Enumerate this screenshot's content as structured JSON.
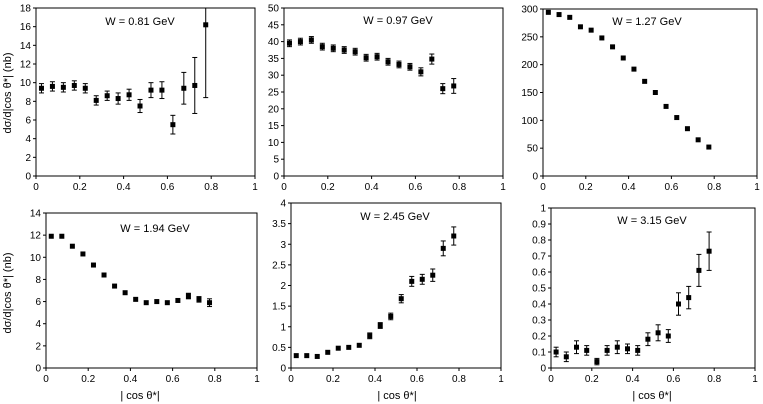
{
  "figure": {
    "ylabel_left": "dσ/d|cos θ*| (nb)",
    "xlabel_bottom": "| cos θ*|"
  },
  "chart_data": [
    {
      "type": "scatter",
      "title": "W = 0.81 GeV",
      "xlabel": "",
      "ylabel": "dσ/d|cos θ*| (nb)",
      "xlim": [
        0,
        1
      ],
      "ylim": [
        0,
        18
      ],
      "xticks": [
        0,
        0.2,
        0.4,
        0.6,
        0.8,
        1
      ],
      "xtick_labels": [
        "0",
        "0.2",
        "0.4",
        "0.6",
        "0.8",
        "1"
      ],
      "yticks": [
        0,
        2,
        4,
        6,
        8,
        10,
        12,
        14,
        16,
        18
      ],
      "ytick_labels": [
        "0",
        "2",
        "4",
        "6",
        "8",
        "10",
        "12",
        "14",
        "16",
        "18"
      ],
      "x": [
        0.025,
        0.075,
        0.125,
        0.175,
        0.225,
        0.275,
        0.325,
        0.375,
        0.425,
        0.475,
        0.525,
        0.575,
        0.625,
        0.675,
        0.725,
        0.775
      ],
      "y": [
        9.4,
        9.6,
        9.5,
        9.7,
        9.4,
        8.1,
        8.6,
        8.3,
        8.7,
        7.5,
        9.2,
        9.2,
        5.5,
        9.4,
        9.7,
        16.2
      ],
      "err": [
        0.5,
        0.5,
        0.5,
        0.5,
        0.5,
        0.5,
        0.5,
        0.6,
        0.6,
        0.7,
        0.8,
        0.9,
        1.0,
        1.7,
        3.0,
        7.8
      ]
    },
    {
      "type": "scatter",
      "title": "W = 0.97 GeV",
      "xlabel": "",
      "ylabel": "",
      "xlim": [
        0,
        1
      ],
      "ylim": [
        0,
        50
      ],
      "xticks": [
        0,
        0.2,
        0.4,
        0.6,
        0.8,
        1
      ],
      "xtick_labels": [
        "0",
        "0.2",
        "0.4",
        "0.6",
        "0.8",
        "1"
      ],
      "yticks": [
        0,
        5,
        10,
        15,
        20,
        25,
        30,
        35,
        40,
        45,
        50
      ],
      "ytick_labels": [
        "0",
        "5",
        "10",
        "15",
        "20",
        "25",
        "30",
        "35",
        "40",
        "45",
        "50"
      ],
      "x": [
        0.025,
        0.075,
        0.125,
        0.175,
        0.225,
        0.275,
        0.325,
        0.375,
        0.425,
        0.475,
        0.525,
        0.575,
        0.625,
        0.675,
        0.725,
        0.775
      ],
      "y": [
        39.5,
        40.0,
        40.5,
        38.5,
        38.0,
        37.5,
        37.0,
        35.2,
        35.5,
        34.0,
        33.2,
        32.5,
        31.0,
        34.8,
        26.0,
        26.8
      ],
      "err": [
        1.0,
        1.0,
        1.0,
        1.0,
        1.0,
        1.0,
        1.0,
        1.0,
        1.0,
        1.0,
        1.0,
        1.0,
        1.2,
        1.5,
        1.5,
        2.2
      ]
    },
    {
      "type": "scatter",
      "title": "W = 1.27 GeV",
      "xlabel": "",
      "ylabel": "",
      "xlim": [
        0,
        1
      ],
      "ylim": [
        0,
        300
      ],
      "xticks": [
        0,
        0.2,
        0.4,
        0.6,
        0.8,
        1
      ],
      "xtick_labels": [
        "0",
        "0.2",
        "0.4",
        "0.6",
        "0.8",
        "1"
      ],
      "yticks": [
        0,
        50,
        100,
        150,
        200,
        250,
        300
      ],
      "ytick_labels": [
        "0",
        "50",
        "100",
        "150",
        "200",
        "250",
        "300"
      ],
      "x": [
        0.025,
        0.075,
        0.125,
        0.175,
        0.225,
        0.275,
        0.325,
        0.375,
        0.425,
        0.475,
        0.525,
        0.575,
        0.625,
        0.675,
        0.725,
        0.775
      ],
      "y": [
        294,
        290,
        285,
        268,
        262,
        248,
        232,
        212,
        192,
        170,
        150,
        125,
        105,
        85,
        65,
        52
      ],
      "err": [
        3,
        3,
        3,
        3,
        3,
        3,
        3,
        3,
        3,
        3,
        3,
        3,
        3,
        3,
        3,
        3
      ]
    },
    {
      "type": "scatter",
      "title": "W = 1.94 GeV",
      "xlabel": "| cos θ*|",
      "ylabel": "dσ/d|cos θ*| (nb)",
      "xlim": [
        0,
        1
      ],
      "ylim": [
        0,
        14
      ],
      "xticks": [
        0,
        0.2,
        0.4,
        0.6,
        0.8,
        1
      ],
      "xtick_labels": [
        "0",
        "0.2",
        "0.4",
        "0.6",
        "0.8",
        "1"
      ],
      "yticks": [
        0,
        2,
        4,
        6,
        8,
        10,
        12,
        14
      ],
      "ytick_labels": [
        "0",
        "2",
        "4",
        "6",
        "8",
        "10",
        "12",
        "14"
      ],
      "x": [
        0.025,
        0.075,
        0.125,
        0.175,
        0.225,
        0.275,
        0.325,
        0.375,
        0.425,
        0.475,
        0.525,
        0.575,
        0.625,
        0.675,
        0.725,
        0.775
      ],
      "y": [
        11.9,
        11.9,
        11.0,
        10.3,
        9.3,
        8.4,
        7.4,
        6.8,
        6.2,
        5.9,
        6.0,
        5.9,
        6.1,
        6.5,
        6.2,
        5.9
      ],
      "err": [
        0.15,
        0.15,
        0.15,
        0.15,
        0.15,
        0.15,
        0.15,
        0.15,
        0.2,
        0.2,
        0.2,
        0.2,
        0.2,
        0.25,
        0.25,
        0.35
      ]
    },
    {
      "type": "scatter",
      "title": "W = 2.45 GeV",
      "xlabel": "| cos θ*|",
      "ylabel": "",
      "xlim": [
        0,
        1
      ],
      "ylim": [
        0,
        4
      ],
      "xticks": [
        0,
        0.2,
        0.4,
        0.6,
        0.8,
        1
      ],
      "xtick_labels": [
        "0",
        "0.2",
        "0.4",
        "0.6",
        "0.8",
        "1"
      ],
      "yticks": [
        0,
        0.5,
        1,
        1.5,
        2,
        2.5,
        3,
        3.5,
        4
      ],
      "ytick_labels": [
        "0",
        "0.5",
        "1",
        "1.5",
        "2",
        "2.5",
        "3",
        "3.5",
        "4"
      ],
      "x": [
        0.025,
        0.075,
        0.125,
        0.175,
        0.225,
        0.275,
        0.325,
        0.375,
        0.425,
        0.475,
        0.525,
        0.575,
        0.625,
        0.675,
        0.725,
        0.775
      ],
      "y": [
        0.3,
        0.3,
        0.28,
        0.38,
        0.48,
        0.5,
        0.55,
        0.78,
        1.03,
        1.25,
        1.68,
        2.1,
        2.15,
        2.25,
        2.9,
        3.2
      ],
      "err": [
        0.05,
        0.05,
        0.05,
        0.05,
        0.05,
        0.05,
        0.05,
        0.07,
        0.07,
        0.08,
        0.1,
        0.12,
        0.12,
        0.15,
        0.18,
        0.22
      ]
    },
    {
      "type": "scatter",
      "title": "W =  3.15 GeV",
      "xlabel": "| cos θ*|",
      "ylabel": "",
      "xlim": [
        0,
        1
      ],
      "ylim": [
        0,
        1
      ],
      "xticks": [
        0,
        0.2,
        0.4,
        0.6,
        0.8,
        1
      ],
      "xtick_labels": [
        "0",
        "0.2",
        "0.4",
        "0.6",
        "0.8",
        "1"
      ],
      "yticks": [
        0,
        0.1,
        0.2,
        0.3,
        0.4,
        0.5,
        0.6,
        0.7,
        0.8,
        0.9,
        1
      ],
      "ytick_labels": [
        "0",
        "0.1",
        "0.2",
        "0.3",
        "0.4",
        "0.5",
        "0.6",
        "0.7",
        "0.8",
        "0.9",
        "1"
      ],
      "x": [
        0.025,
        0.075,
        0.125,
        0.175,
        0.225,
        0.275,
        0.325,
        0.375,
        0.425,
        0.475,
        0.525,
        0.575,
        0.625,
        0.675,
        0.725,
        0.775
      ],
      "y": [
        0.1,
        0.07,
        0.13,
        0.11,
        0.04,
        0.11,
        0.13,
        0.12,
        0.11,
        0.18,
        0.22,
        0.2,
        0.4,
        0.44,
        0.61,
        0.73
      ],
      "err": [
        0.03,
        0.03,
        0.04,
        0.03,
        0.02,
        0.03,
        0.04,
        0.03,
        0.03,
        0.04,
        0.05,
        0.04,
        0.07,
        0.07,
        0.1,
        0.12
      ]
    }
  ]
}
